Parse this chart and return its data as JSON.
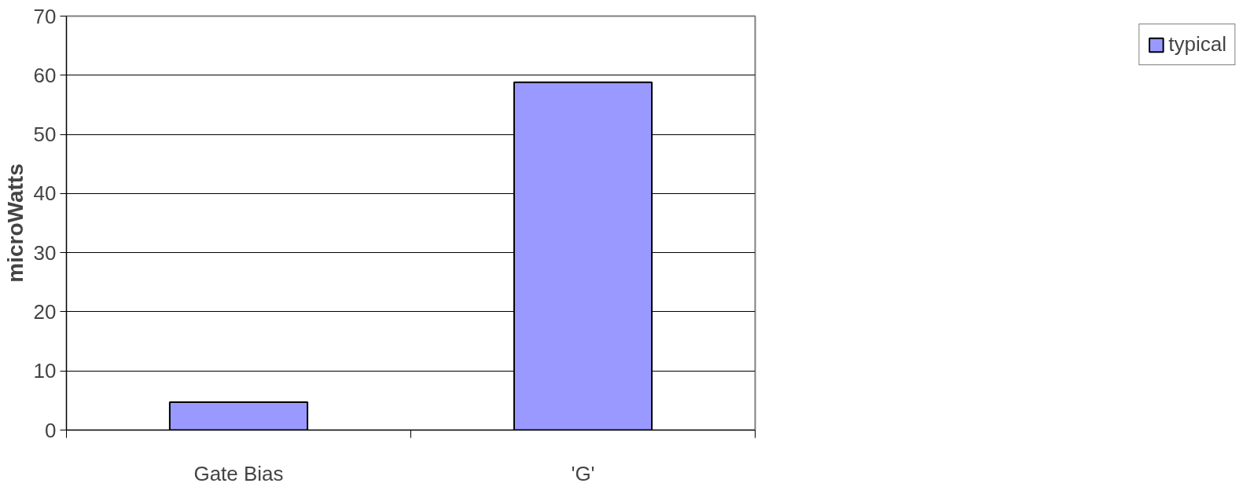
{
  "chart_data": {
    "type": "bar",
    "ylabel": "microWatts",
    "categories": [
      "Gate Bias",
      "'G'"
    ],
    "series": [
      {
        "name": "typical",
        "color": "#9999ff",
        "values": [
          4.7,
          58.8
        ]
      }
    ],
    "ylim": [
      0,
      70
    ],
    "yticks": [
      0,
      10,
      20,
      30,
      40,
      50,
      60,
      70
    ],
    "grid": "y",
    "legend": "right"
  }
}
